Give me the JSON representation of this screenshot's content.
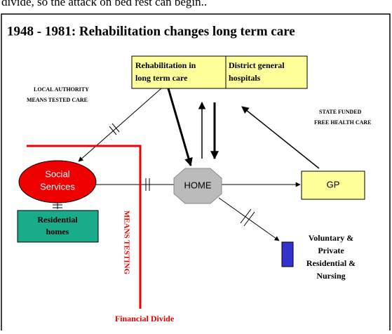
{
  "intro": "divide, so the attack on bed rest can begin..",
  "title": "1948 - 1981: Rehabilitation changes long term care",
  "nodes": [
    {
      "label": [
        "Rehabilitation in",
        "long term care"
      ]
    },
    {
      "label": [
        "District general",
        "hospitals"
      ]
    },
    {
      "label": [
        "Social",
        "Services"
      ]
    },
    {
      "label": [
        "HOME"
      ]
    },
    {
      "label": [
        "GP"
      ]
    },
    {
      "label": [
        "Residential",
        "homes"
      ]
    },
    {
      "label": [
        "Voluntary &",
        "Private",
        "Residential &",
        "Nursing"
      ]
    }
  ],
  "notes": {
    "local": [
      "LOCAL AUTHORITY",
      "MEANS TESTED CARE"
    ],
    "state": [
      "STATE FUNDED",
      "FREE HEALTH CARE"
    ],
    "means_testing": "MEANS TESTING",
    "financial_divide": "Financial Divide"
  }
}
